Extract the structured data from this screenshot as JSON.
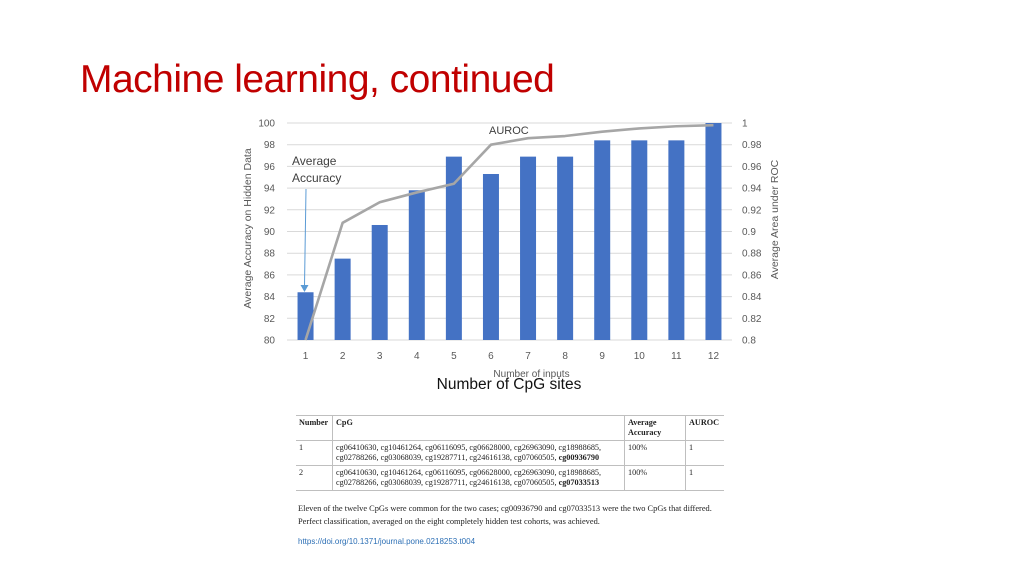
{
  "title": "Machine learning, continued",
  "caption": "Number of CpG sites",
  "chart_data": {
    "type": "bar",
    "categories": [
      "1",
      "2",
      "3",
      "4",
      "5",
      "6",
      "7",
      "8",
      "9",
      "10",
      "11",
      "12"
    ],
    "series": [
      {
        "name": "Average Accuracy",
        "type": "bar",
        "axis": "left",
        "values": [
          84.4,
          87.5,
          90.6,
          93.8,
          96.9,
          95.3,
          96.9,
          96.9,
          98.4,
          98.4,
          98.4,
          100
        ]
      },
      {
        "name": "AUROC",
        "type": "line",
        "axis": "right",
        "values": [
          0.8,
          0.908,
          0.927,
          0.936,
          0.944,
          0.98,
          0.986,
          0.988,
          0.992,
          0.995,
          0.997,
          0.998
        ]
      }
    ],
    "xlabel": "Number of inputs",
    "ylabel": "Average Accuracy on Hidden Data",
    "y2label": "Average Area under ROC",
    "ylim": [
      80,
      100
    ],
    "y2lim": [
      0.8,
      1
    ],
    "yticks": [
      "80",
      "82",
      "84",
      "86",
      "88",
      "90",
      "92",
      "94",
      "96",
      "98",
      "100"
    ],
    "y2ticks": [
      "0.8",
      "0.82",
      "0.84",
      "0.86",
      "0.88",
      "0.9",
      "0.92",
      "0.94",
      "0.96",
      "0.98",
      "1"
    ],
    "annotations": [
      {
        "text": "Average Accuracy",
        "lines": [
          "Average",
          "Accuracy"
        ],
        "points_to": "bar 1"
      },
      {
        "text": "AUROC",
        "points_to": "line"
      }
    ],
    "grid": true,
    "colors": {
      "bar": "#4472c4",
      "line": "#a6a6a6",
      "grid": "#d9d9d9"
    }
  },
  "table": {
    "headers": [
      "Number",
      "CpG",
      "Average Accuracy",
      "AUROC"
    ],
    "rows": [
      {
        "number": "1",
        "cpg_line1": "cg06410630, cg10461264, cg06116095, cg06628000, cg26963090, cg18988685,",
        "cpg_line2": "cg02788266, cg03068039, cg19287711, cg24616138, cg07060505, ",
        "cpg_bold": "cg00936790",
        "accuracy": "100%",
        "auroc": "1"
      },
      {
        "number": "2",
        "cpg_line1": "cg06410630, cg10461264, cg06116095, cg06628000, cg26963090, cg18988685,",
        "cpg_line2": "cg02788266, cg03068039, cg19287711, cg24616138, cg07060505, ",
        "cpg_bold": "cg07033513",
        "accuracy": "100%",
        "auroc": "1"
      }
    ]
  },
  "footnote": "Eleven of the twelve CpGs were common for the two cases; cg00936790 and cg07033513 were the two CpGs that differed. Perfect classification, averaged on the eight completely hidden test cohorts, was achieved.",
  "doi": "https://doi.org/10.1371/journal.pone.0218253.t004"
}
